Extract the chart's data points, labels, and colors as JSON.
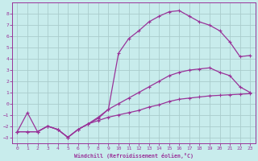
{
  "xlabel": "Windchill (Refroidissement éolien,°C)",
  "bg_color": "#c8ecec",
  "grid_color": "#aacccc",
  "line_color": "#993399",
  "xlim": [
    -0.5,
    23.5
  ],
  "ylim": [
    -3.5,
    9.0
  ],
  "xticks": [
    0,
    1,
    2,
    3,
    4,
    5,
    6,
    7,
    8,
    9,
    10,
    11,
    12,
    13,
    14,
    15,
    16,
    17,
    18,
    19,
    20,
    21,
    22,
    23
  ],
  "yticks": [
    -3,
    -2,
    -1,
    0,
    1,
    2,
    3,
    4,
    5,
    6,
    7,
    8
  ],
  "s1y": [
    -2.5,
    -2.5,
    -2.5,
    -2.0,
    -2.3,
    -3.0,
    -2.3,
    -1.8,
    -1.5,
    -1.2,
    -1.0,
    -0.8,
    -0.6,
    -0.3,
    -0.1,
    0.2,
    0.4,
    0.5,
    0.6,
    0.7,
    0.75,
    0.8,
    0.85,
    0.9
  ],
  "s2y": [
    -2.5,
    -2.5,
    -2.5,
    -2.0,
    -2.3,
    -3.0,
    -2.3,
    -1.8,
    -1.3,
    -0.5,
    0.0,
    0.5,
    1.0,
    1.5,
    2.0,
    2.5,
    2.8,
    3.0,
    3.1,
    3.2,
    2.8,
    2.5,
    1.5,
    1.0
  ],
  "s3y": [
    -2.5,
    -0.8,
    -2.5,
    -2.0,
    -2.3,
    -3.0,
    -2.3,
    -1.8,
    -1.2,
    -0.5,
    4.5,
    5.8,
    6.5,
    7.3,
    7.8,
    8.2,
    8.3,
    7.8,
    7.3,
    7.0,
    6.5,
    5.5,
    4.2,
    4.3
  ]
}
